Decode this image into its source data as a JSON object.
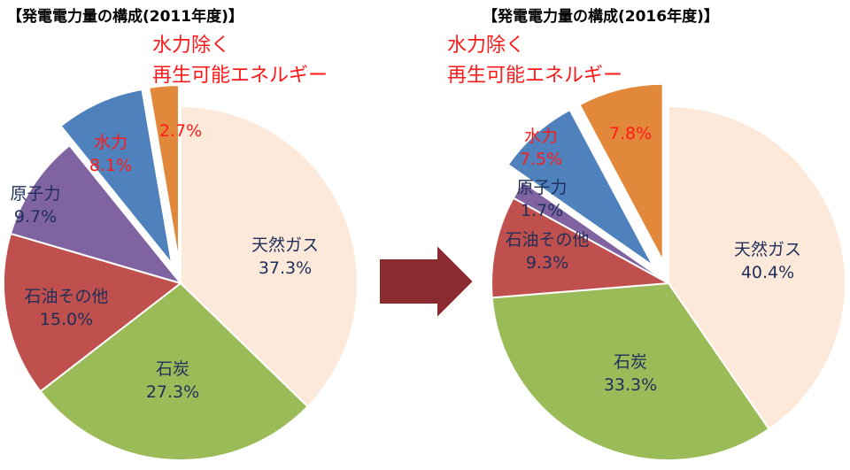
{
  "colors": {
    "gas": "#fde9d9",
    "coal": "#9bbb59",
    "oil": "#c0504d",
    "nuclear": "#8064a2",
    "hydro": "#4f81bd",
    "renewables": "#e2883a",
    "arrow": "#8b2b2f",
    "label_text": "#1f2f5a",
    "highlight_text": "#ff1a1a"
  },
  "chart_data": [
    {
      "type": "pie",
      "title": "【発電電力量の構成(2011年度)】",
      "callout": {
        "line1": "水力除く",
        "line2": "再生可能エネルギー"
      },
      "slices": [
        {
          "key": "gas",
          "name": "天然ガス",
          "value": 37.3,
          "label": "37.3%",
          "exploded": false
        },
        {
          "key": "coal",
          "name": "石炭",
          "value": 27.3,
          "label": "27.3%",
          "exploded": false
        },
        {
          "key": "oil",
          "name": "石油その他",
          "value": 15.0,
          "label": "15.0%",
          "exploded": false
        },
        {
          "key": "nuclear",
          "name": "原子力",
          "value": 9.7,
          "label": "9.7%",
          "exploded": false
        },
        {
          "key": "hydro",
          "name": "水力",
          "value": 8.1,
          "label": "8.1%",
          "exploded": true
        },
        {
          "key": "renewables",
          "name": "",
          "value": 2.7,
          "label": "2.7%",
          "exploded": true
        }
      ]
    },
    {
      "type": "pie",
      "title": "【発電電力量の構成(2016年度)】",
      "callout": {
        "line1": "水力除く",
        "line2": "再生可能エネルギー"
      },
      "slices": [
        {
          "key": "gas",
          "name": "天然ガス",
          "value": 40.4,
          "label": "40.4%",
          "exploded": false
        },
        {
          "key": "coal",
          "name": "石炭",
          "value": 33.3,
          "label": "33.3%",
          "exploded": false
        },
        {
          "key": "oil",
          "name": "石油その他",
          "value": 9.3,
          "label": "9.3%",
          "exploded": false
        },
        {
          "key": "nuclear",
          "name": "原子力",
          "value": 1.7,
          "label": "1.7%",
          "exploded": false
        },
        {
          "key": "hydro",
          "name": "水力",
          "value": 7.5,
          "label": "7.5%",
          "exploded": true
        },
        {
          "key": "renewables",
          "name": "",
          "value": 7.8,
          "label": "7.8%",
          "exploded": true
        }
      ]
    }
  ]
}
